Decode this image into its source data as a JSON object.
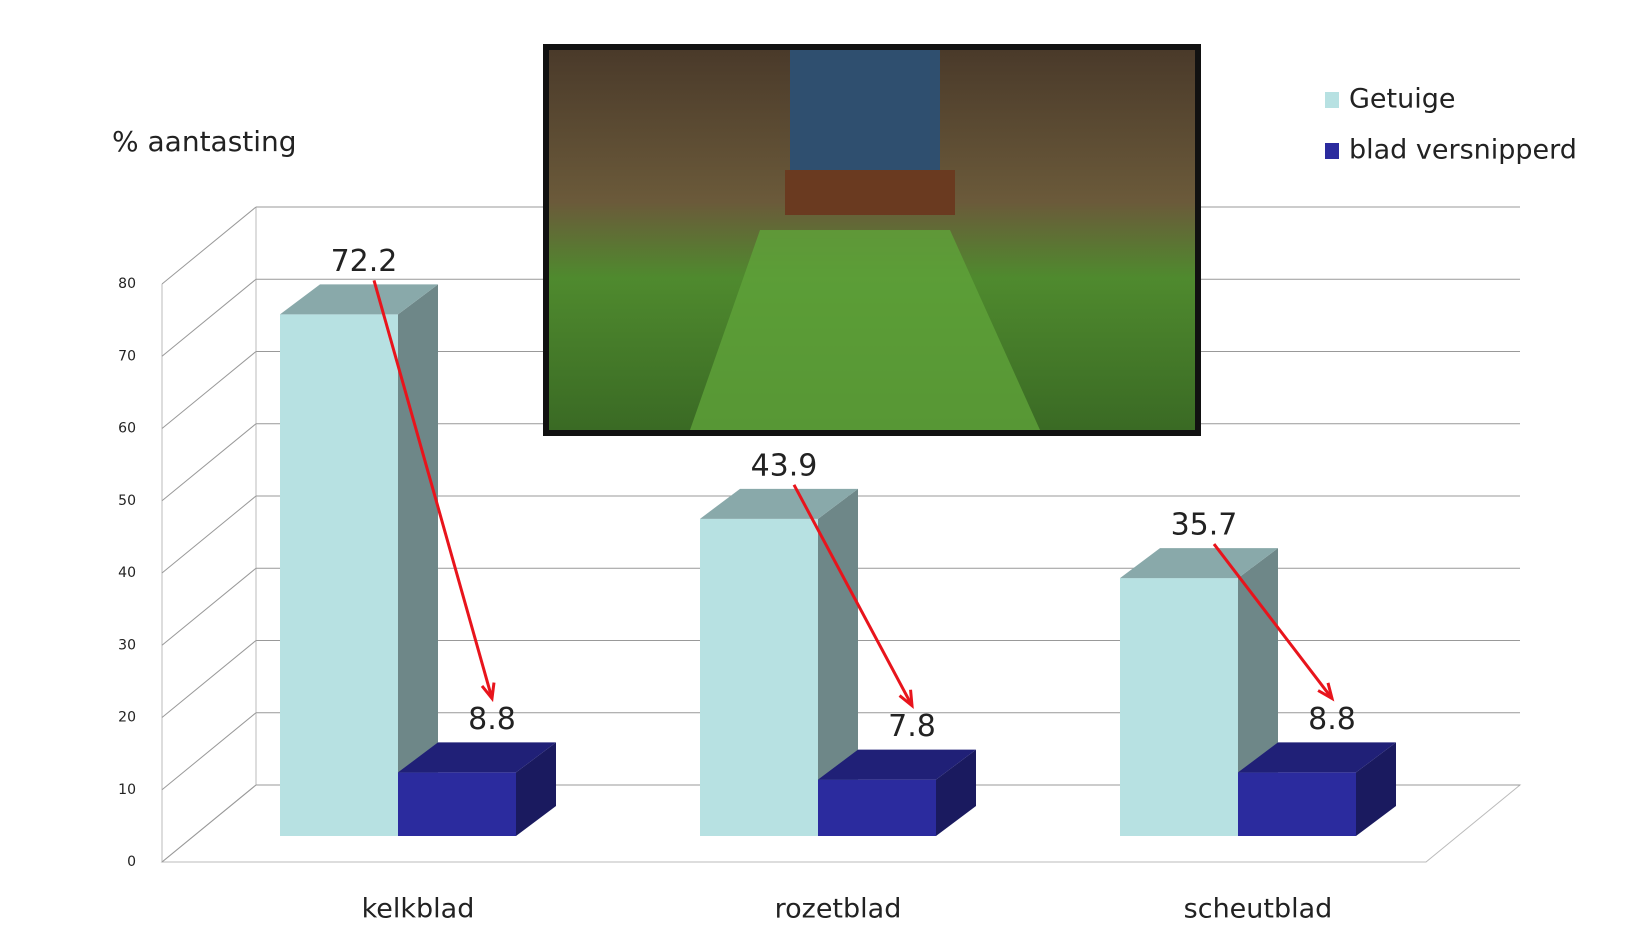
{
  "chart_data": {
    "type": "bar3d",
    "y_label": "% aantasting",
    "categories": [
      "kelkblad",
      "rozetblad",
      "scheutblad"
    ],
    "series": [
      {
        "name": "Getuige",
        "color": "#b7e1e2",
        "values": [
          72.2,
          43.9,
          35.7
        ]
      },
      {
        "name": "blad versnipperd",
        "color": "#2b2b9e",
        "values": [
          8.8,
          7.8,
          8.8
        ]
      }
    ],
    "ylim": [
      0,
      80
    ],
    "yticks": [
      0,
      10,
      20,
      30,
      40,
      50,
      60,
      70,
      80
    ],
    "grid": true,
    "legend": "top-right"
  }
}
